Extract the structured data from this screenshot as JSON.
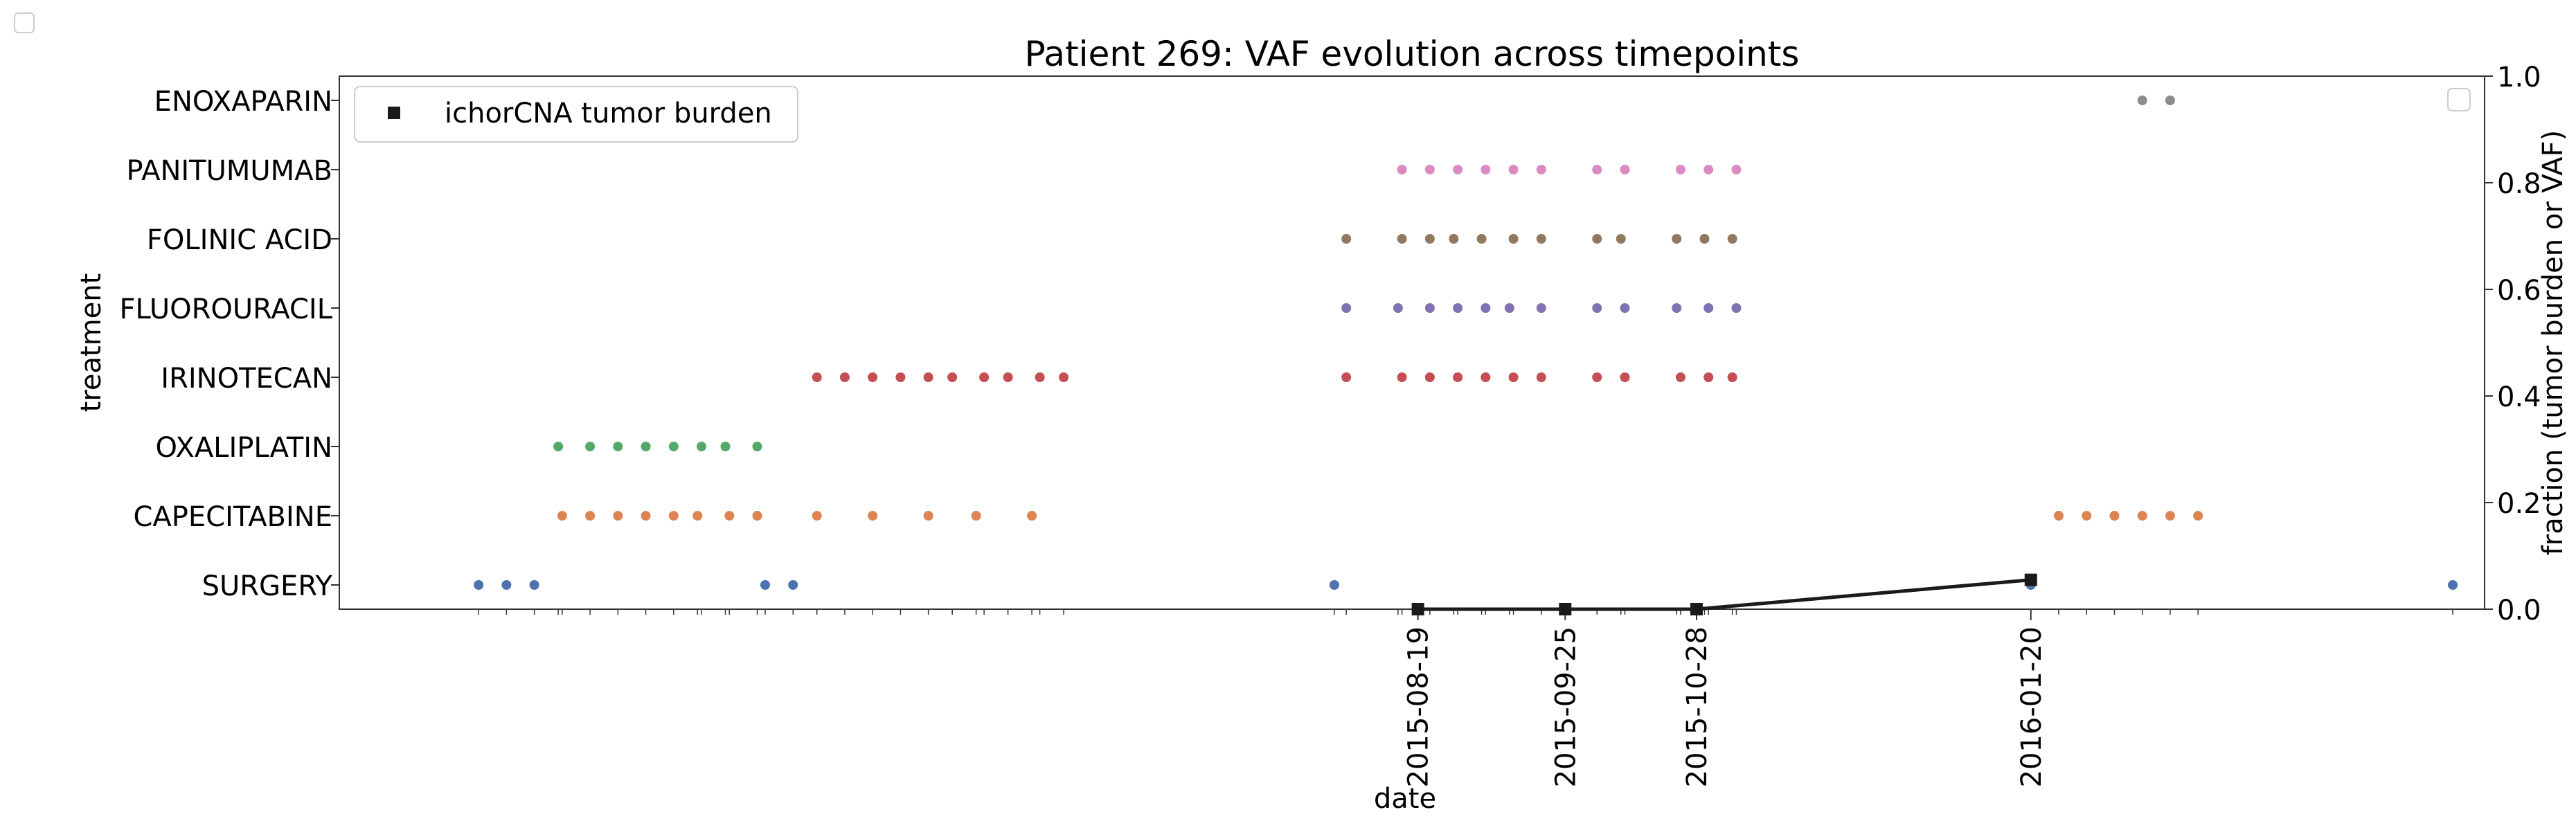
{
  "chart_data": {
    "type": "scatter",
    "title": "Patient 269: VAF evolution across timepoints",
    "xlabel": "date",
    "ylabel_left": "treatment",
    "ylabel_right": "fraction (tumor burden or VAF)",
    "right_ylim": [
      0,
      1
    ],
    "right_yticks": [
      "0.0",
      "0.2",
      "0.4",
      "0.6",
      "0.8",
      "1.0"
    ],
    "xlim_dates": [
      "2014-11-21",
      "2016-05-13"
    ],
    "x_tick_labels": [
      "2015-08-19",
      "2015-09-25",
      "2015-10-28",
      "2016-01-20"
    ],
    "treatments": [
      "SURGERY",
      "CAPECITABINE",
      "OXALIPLATIN",
      "IRINOTECAN",
      "FLUOROURACIL",
      "FOLINIC ACID",
      "PANITUMUMAB",
      "ENOXAPARIN"
    ],
    "treatment_colors": {
      "SURGERY": "#4c72b0",
      "CAPECITABINE": "#dd8452",
      "OXALIPLATIN": "#55a868",
      "IRINOTECAN": "#c44e52",
      "FLUOROURACIL": "#8172b3",
      "FOLINIC ACID": "#937860",
      "PANITUMUMAB": "#da8bc3",
      "ENOXAPARIN": "#8c8c8c"
    },
    "treatment_events": {
      "SURGERY": [
        "2014-12-26",
        "2015-01-02",
        "2015-01-09",
        "2015-03-08",
        "2015-03-15",
        "2015-07-29",
        "2016-01-20",
        "2016-05-05"
      ],
      "CAPECITABINE": [
        "2015-01-16",
        "2015-01-23",
        "2015-01-30",
        "2015-02-06",
        "2015-02-13",
        "2015-02-19",
        "2015-02-27",
        "2015-03-06",
        "2015-03-21",
        "2015-04-04",
        "2015-04-18",
        "2015-04-30",
        "2015-05-14",
        "2016-01-27",
        "2016-02-03",
        "2016-02-10",
        "2016-02-17",
        "2016-02-24",
        "2016-03-02"
      ],
      "OXALIPLATIN": [
        "2015-01-15",
        "2015-01-23",
        "2015-01-30",
        "2015-02-06",
        "2015-02-13",
        "2015-02-20",
        "2015-02-26",
        "2015-03-06"
      ],
      "IRINOTECAN": [
        "2015-03-21",
        "2015-03-28",
        "2015-04-04",
        "2015-04-11",
        "2015-04-18",
        "2015-04-24",
        "2015-05-02",
        "2015-05-08",
        "2015-05-16",
        "2015-05-22",
        "2015-08-01",
        "2015-08-15",
        "2015-08-22",
        "2015-08-29",
        "2015-09-05",
        "2015-09-12",
        "2015-09-19",
        "2015-10-03",
        "2015-10-10",
        "2015-10-24",
        "2015-10-31",
        "2015-11-06"
      ],
      "FLUOROURACIL": [
        "2015-08-01",
        "2015-08-14",
        "2015-08-22",
        "2015-08-29",
        "2015-09-05",
        "2015-09-11",
        "2015-09-19",
        "2015-10-03",
        "2015-10-10",
        "2015-10-23",
        "2015-10-31",
        "2015-11-07"
      ],
      "FOLINIC ACID": [
        "2015-08-01",
        "2015-08-15",
        "2015-08-22",
        "2015-08-28",
        "2015-09-04",
        "2015-09-12",
        "2015-09-19",
        "2015-10-03",
        "2015-10-09",
        "2015-10-23",
        "2015-10-30",
        "2015-11-06"
      ],
      "PANITUMUMAB": [
        "2015-08-15",
        "2015-08-22",
        "2015-08-29",
        "2015-09-05",
        "2015-09-12",
        "2015-09-19",
        "2015-10-03",
        "2015-10-10",
        "2015-10-24",
        "2015-10-31",
        "2015-11-07"
      ],
      "ENOXAPARIN": [
        "2016-02-17",
        "2016-02-24"
      ]
    },
    "series": [
      {
        "name": "ichorCNA tumor burden",
        "color": "#1a1a1a",
        "marker": "square",
        "x": [
          "2015-08-19",
          "2015-09-25",
          "2015-10-28",
          "2016-01-20"
        ],
        "y": [
          0.0,
          0.0,
          0.0,
          0.055
        ]
      }
    ],
    "legend": {
      "entries": [
        "ichorCNA tumor burden"
      ],
      "placement": "top-left"
    },
    "grid": false
  }
}
